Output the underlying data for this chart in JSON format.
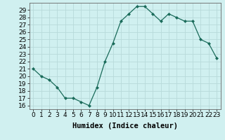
{
  "x": [
    0,
    1,
    2,
    3,
    4,
    5,
    6,
    7,
    8,
    9,
    10,
    11,
    12,
    13,
    14,
    15,
    16,
    17,
    18,
    19,
    20,
    21,
    22,
    23
  ],
  "y": [
    21,
    20,
    19.5,
    18.5,
    17,
    17,
    16.5,
    16,
    18.5,
    22,
    24.5,
    27.5,
    28.5,
    29.5,
    29.5,
    28.5,
    27.5,
    28.5,
    28,
    27.5,
    27.5,
    25,
    24.5,
    22.5
  ],
  "line_color": "#1a6b5a",
  "marker": "D",
  "marker_size": 2,
  "xlabel": "Humidex (Indice chaleur)",
  "ylim": [
    15.5,
    30
  ],
  "xlim": [
    -0.5,
    23.5
  ],
  "yticks": [
    16,
    17,
    18,
    19,
    20,
    21,
    22,
    23,
    24,
    25,
    26,
    27,
    28,
    29
  ],
  "xticks": [
    0,
    1,
    2,
    3,
    4,
    5,
    6,
    7,
    8,
    9,
    10,
    11,
    12,
    13,
    14,
    15,
    16,
    17,
    18,
    19,
    20,
    21,
    22,
    23
  ],
  "bg_color": "#d0f0f0",
  "grid_color": "#b8dada",
  "label_fontsize": 7.5,
  "tick_fontsize": 6.5,
  "xlabel_fontweight": "bold"
}
